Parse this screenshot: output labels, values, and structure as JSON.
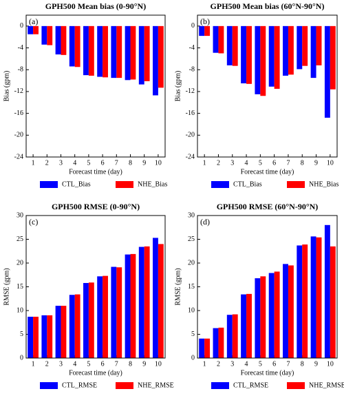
{
  "chart_data": [
    {
      "type": "bar",
      "title": "GPH500 Mean bias (0-90°N)",
      "panel_label": "(a)",
      "xlabel": "Forecast time (day)",
      "ylabel": "Bias (gpm)",
      "categories": [
        "1",
        "2",
        "3",
        "4",
        "5",
        "6",
        "7",
        "8",
        "9",
        "10"
      ],
      "series": [
        {
          "name": "CTL_Bias",
          "color": "#0000ff",
          "values": [
            -1.5,
            -3.4,
            -5.2,
            -7.4,
            -9.0,
            -9.3,
            -9.5,
            -9.9,
            -10.7,
            -12.7
          ]
        },
        {
          "name": "NHE_Bias",
          "color": "#ff0000",
          "values": [
            -1.5,
            -3.5,
            -5.3,
            -7.5,
            -9.1,
            -9.4,
            -9.5,
            -9.8,
            -10.1,
            -11.3
          ]
        }
      ],
      "ylim": [
        -24,
        2
      ],
      "yticks": [
        0,
        -4,
        -8,
        -12,
        -16,
        -20,
        -24
      ]
    },
    {
      "type": "bar",
      "title": "GPH500 Mean bias (60°N-90°N)",
      "panel_label": "(b)",
      "xlabel": "Forecast time (day)",
      "ylabel": "Bias (gpm)",
      "categories": [
        "1",
        "2",
        "3",
        "4",
        "5",
        "6",
        "7",
        "8",
        "9",
        "10"
      ],
      "series": [
        {
          "name": "CTL_Bias",
          "color": "#0000ff",
          "values": [
            -1.8,
            -4.9,
            -7.2,
            -10.5,
            -12.5,
            -11.1,
            -9.1,
            -7.9,
            -9.5,
            -16.8
          ]
        },
        {
          "name": "NHE_Bias",
          "color": "#ff0000",
          "values": [
            -1.8,
            -5.0,
            -7.3,
            -10.6,
            -12.8,
            -11.5,
            -8.9,
            -7.3,
            -7.2,
            -11.6
          ]
        }
      ],
      "ylim": [
        -24,
        2
      ],
      "yticks": [
        0,
        -4,
        -8,
        -12,
        -16,
        -20,
        -24
      ]
    },
    {
      "type": "bar",
      "title": "GPH500 RMSE (0-90°N)",
      "panel_label": "(c)",
      "xlabel": "Forecast time (day)",
      "ylabel": "RMSE (gpm)",
      "categories": [
        "1",
        "2",
        "3",
        "4",
        "5",
        "6",
        "7",
        "8",
        "9",
        "10"
      ],
      "series": [
        {
          "name": "CTL_RMSE",
          "color": "#0000ff",
          "values": [
            8.7,
            9.0,
            11.0,
            13.3,
            15.8,
            17.2,
            19.2,
            21.8,
            23.4,
            25.3
          ]
        },
        {
          "name": "NHE_RMSE",
          "color": "#ff0000",
          "values": [
            8.7,
            9.0,
            11.0,
            13.4,
            15.9,
            17.3,
            19.1,
            21.9,
            23.5,
            24.0
          ]
        }
      ],
      "ylim": [
        0,
        30
      ],
      "yticks": [
        0,
        5,
        10,
        15,
        20,
        25,
        30
      ]
    },
    {
      "type": "bar",
      "title": "GPH500 RMSE (60°N-90°N)",
      "panel_label": "(d)",
      "xlabel": "Forecast time (day)",
      "ylabel": "RMSE (gpm)",
      "categories": [
        "1",
        "2",
        "3",
        "4",
        "5",
        "6",
        "7",
        "8",
        "9",
        "10"
      ],
      "series": [
        {
          "name": "CTL_RMSE",
          "color": "#0000ff",
          "values": [
            4.1,
            6.3,
            9.1,
            13.4,
            16.8,
            17.9,
            19.8,
            23.7,
            25.6,
            28.0
          ]
        },
        {
          "name": "NHE_RMSE",
          "color": "#ff0000",
          "values": [
            4.1,
            6.4,
            9.2,
            13.5,
            17.2,
            18.2,
            19.5,
            23.9,
            25.4,
            23.5
          ]
        }
      ],
      "ylim": [
        0,
        30
      ],
      "yticks": [
        0,
        5,
        10,
        15,
        20,
        25,
        30
      ]
    }
  ]
}
